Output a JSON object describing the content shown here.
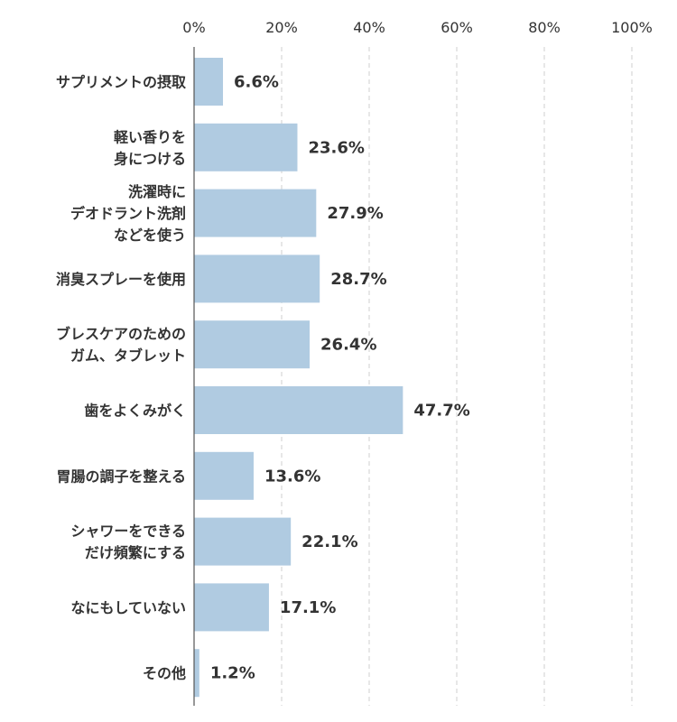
{
  "chart_data": {
    "type": "bar",
    "orientation": "horizontal",
    "categories": [
      [
        "サプリメントの摂取"
      ],
      [
        "軽い香りを",
        "身につける"
      ],
      [
        "洗濯時に",
        "デオドラント洗剤",
        "などを使う"
      ],
      [
        "消臭スプレーを使用"
      ],
      [
        "ブレスケアのための",
        "ガム、タブレット"
      ],
      [
        "歯をよくみがく"
      ],
      [
        "胃腸の調子を整える"
      ],
      [
        "シャワーをできる",
        "だけ頻繁にする"
      ],
      [
        "なにもしていない"
      ],
      [
        "その他"
      ]
    ],
    "values": [
      6.6,
      23.6,
      27.9,
      28.7,
      26.4,
      47.7,
      13.6,
      22.1,
      17.1,
      1.2
    ],
    "value_labels": [
      "6.6%",
      "23.6%",
      "27.9%",
      "28.7%",
      "26.4%",
      "47.7%",
      "13.6%",
      "22.1%",
      "17.1%",
      "1.2%"
    ],
    "x_ticks": [
      "0%",
      "20%",
      "40%",
      "60%",
      "80%",
      "100%"
    ],
    "xlim": [
      0,
      100
    ],
    "grid": true,
    "colors": {
      "bar": "#b0cbe1",
      "text": "#333333",
      "grid": "#cfcfcf",
      "axis": "#555555"
    }
  }
}
